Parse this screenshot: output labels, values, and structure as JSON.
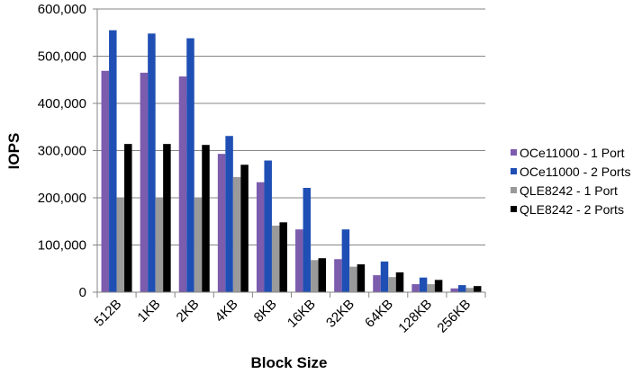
{
  "chart_data": {
    "type": "bar",
    "title": "",
    "xlabel": "Block Size",
    "ylabel": "IOPS",
    "ylim": [
      0,
      600000
    ],
    "yticks": [
      "0",
      "100,000",
      "200,000",
      "300,000",
      "400,000",
      "500,000",
      "600,000"
    ],
    "ytick_values": [
      0,
      100000,
      200000,
      300000,
      400000,
      500000,
      600000
    ],
    "grid": true,
    "legend_position": "right",
    "categories": [
      "512B",
      "1KB",
      "2KB",
      "4KB",
      "8KB",
      "16KB",
      "32KB",
      "64KB",
      "128KB",
      "256KB"
    ],
    "series": [
      {
        "name": "OCe11000 - 1 Port",
        "color": "#7b5cad",
        "values": [
          469000,
          465000,
          457000,
          293000,
          233000,
          133000,
          70000,
          36000,
          17000,
          8000
        ]
      },
      {
        "name": "OCe11000 - 2 Ports",
        "color": "#1f4fb4",
        "values": [
          555000,
          548000,
          538000,
          331000,
          279000,
          221000,
          133000,
          65000,
          31000,
          15000
        ]
      },
      {
        "name": "QLE8242 - 1 Port",
        "color": "#9a9a9a",
        "values": [
          201000,
          201000,
          201000,
          244000,
          141000,
          68000,
          54000,
          32000,
          17000,
          9000
        ]
      },
      {
        "name": "QLE8242 - 2 Ports",
        "color": "#000000",
        "values": [
          314000,
          314000,
          312000,
          270000,
          148000,
          72000,
          59000,
          42000,
          26000,
          13000
        ]
      }
    ]
  }
}
